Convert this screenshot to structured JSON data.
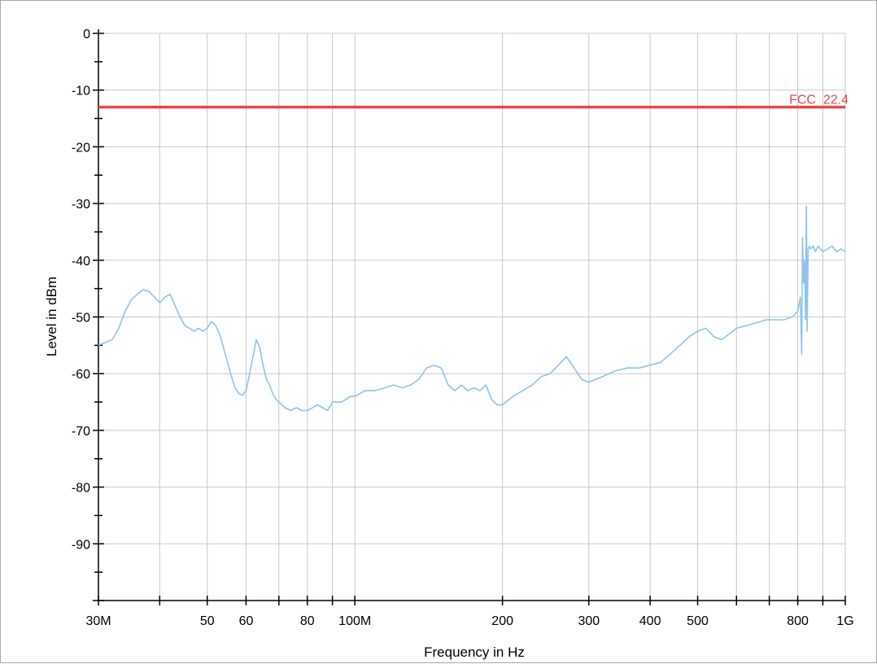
{
  "chart_data": {
    "type": "line",
    "title": "",
    "xlabel": "Frequency in Hz",
    "ylabel": "Level in dBm",
    "x_scale": "log",
    "xlim": [
      30000000,
      1000000000
    ],
    "ylim": [
      -100,
      0
    ],
    "grid": true,
    "x_tick_labels": [
      {
        "value": 30000000,
        "label": "30M"
      },
      {
        "value": 50000000,
        "label": "50"
      },
      {
        "value": 60000000,
        "label": "60"
      },
      {
        "value": 80000000,
        "label": "80"
      },
      {
        "value": 100000000,
        "label": "100M"
      },
      {
        "value": 200000000,
        "label": "200"
      },
      {
        "value": 300000000,
        "label": "300"
      },
      {
        "value": 400000000,
        "label": "400"
      },
      {
        "value": 500000000,
        "label": "500"
      },
      {
        "value": 800000000,
        "label": "800"
      },
      {
        "value": 1000000000,
        "label": "1G"
      }
    ],
    "x_grid_values": [
      30000000,
      40000000,
      50000000,
      60000000,
      70000000,
      80000000,
      90000000,
      100000000,
      200000000,
      300000000,
      400000000,
      500000000,
      600000000,
      700000000,
      800000000,
      900000000,
      1000000000
    ],
    "y_tick_labels": [
      {
        "value": 0,
        "label": "0"
      },
      {
        "value": -10,
        "label": "-10"
      },
      {
        "value": -20,
        "label": "-20"
      },
      {
        "value": -30,
        "label": "-30"
      },
      {
        "value": -40,
        "label": "-40"
      },
      {
        "value": -50,
        "label": "-50"
      },
      {
        "value": -60,
        "label": "-60"
      },
      {
        "value": -70,
        "label": "-70"
      },
      {
        "value": -80,
        "label": "-80"
      },
      {
        "value": -90,
        "label": "-90"
      }
    ],
    "limit_lines": [
      {
        "name": "FCC 22.4",
        "value": -13,
        "color": "#e8474a"
      }
    ],
    "series": [
      {
        "color": "#8fc3ee",
        "x": [
          30000000,
          31000000,
          32000000,
          33000000,
          34000000,
          35000000,
          36000000,
          37000000,
          38000000,
          39000000,
          40000000,
          41000000,
          42000000,
          43000000,
          44000000,
          45000000,
          46000000,
          47000000,
          48000000,
          49000000,
          50000000,
          51000000,
          52000000,
          53000000,
          54000000,
          55000000,
          56000000,
          57000000,
          58000000,
          59000000,
          60000000,
          61000000,
          62000000,
          63000000,
          64000000,
          65000000,
          66000000,
          67000000,
          68000000,
          69000000,
          70000000,
          72000000,
          74000000,
          76000000,
          78000000,
          80000000,
          82000000,
          84000000,
          86000000,
          88000000,
          90000000,
          92000000,
          94000000,
          96000000,
          98000000,
          100000000,
          105000000,
          110000000,
          115000000,
          120000000,
          125000000,
          130000000,
          135000000,
          140000000,
          145000000,
          150000000,
          155000000,
          160000000,
          165000000,
          170000000,
          175000000,
          180000000,
          185000000,
          190000000,
          195000000,
          200000000,
          210000000,
          220000000,
          230000000,
          240000000,
          250000000,
          260000000,
          270000000,
          280000000,
          290000000,
          300000000,
          320000000,
          340000000,
          360000000,
          380000000,
          400000000,
          420000000,
          440000000,
          460000000,
          480000000,
          500000000,
          520000000,
          540000000,
          560000000,
          580000000,
          600000000,
          630000000,
          660000000,
          690000000,
          720000000,
          750000000,
          780000000,
          800000000,
          810000000,
          815000000,
          818000000,
          822000000,
          826000000,
          830000000,
          833000000,
          836000000,
          840000000,
          845000000,
          850000000,
          860000000,
          870000000,
          880000000,
          890000000,
          900000000,
          920000000,
          940000000,
          960000000,
          980000000,
          1000000000
        ],
        "y": [
          -55,
          -54.5,
          -54,
          -52,
          -49,
          -47,
          -46,
          -45.2,
          -45.5,
          -46.5,
          -47.5,
          -46.5,
          -46,
          -48,
          -50,
          -51.5,
          -52,
          -52.5,
          -52,
          -52.5,
          -52,
          -50.8,
          -51.5,
          -53,
          -55.5,
          -58,
          -60.5,
          -62.5,
          -63.5,
          -63.8,
          -63,
          -60,
          -57,
          -54,
          -55.5,
          -58.5,
          -61,
          -62,
          -63.5,
          -64.5,
          -65,
          -66,
          -66.5,
          -66,
          -66.5,
          -66.5,
          -66,
          -65.5,
          -66,
          -66.5,
          -65,
          -65,
          -65,
          -64.5,
          -64,
          -64,
          -63,
          -63,
          -62.5,
          -62,
          -62.5,
          -62,
          -61,
          -59,
          -58.5,
          -59,
          -62,
          -63,
          -62,
          -63,
          -62.5,
          -63,
          -62,
          -64.5,
          -65.5,
          -65.5,
          -64,
          -63,
          -62,
          -60.5,
          -60,
          -58.5,
          -57,
          -59,
          -61,
          -61.5,
          -60.5,
          -59.5,
          -59,
          -59,
          -58.5,
          -58,
          -56.5,
          -55,
          -53.5,
          -52.5,
          -52,
          -53.5,
          -54,
          -53,
          -52,
          -51.5,
          -51,
          -50.5,
          -50.5,
          -50.5,
          -50,
          -49,
          -46.5,
          -56.5,
          -36,
          -44,
          -40,
          -50.5,
          -30.5,
          -52.5,
          -38,
          -37.5,
          -38,
          -37.5,
          -38.5,
          -37.5,
          -38,
          -38.5,
          -38,
          -37.5,
          -38.5,
          -38,
          -38.5
        ]
      }
    ]
  }
}
